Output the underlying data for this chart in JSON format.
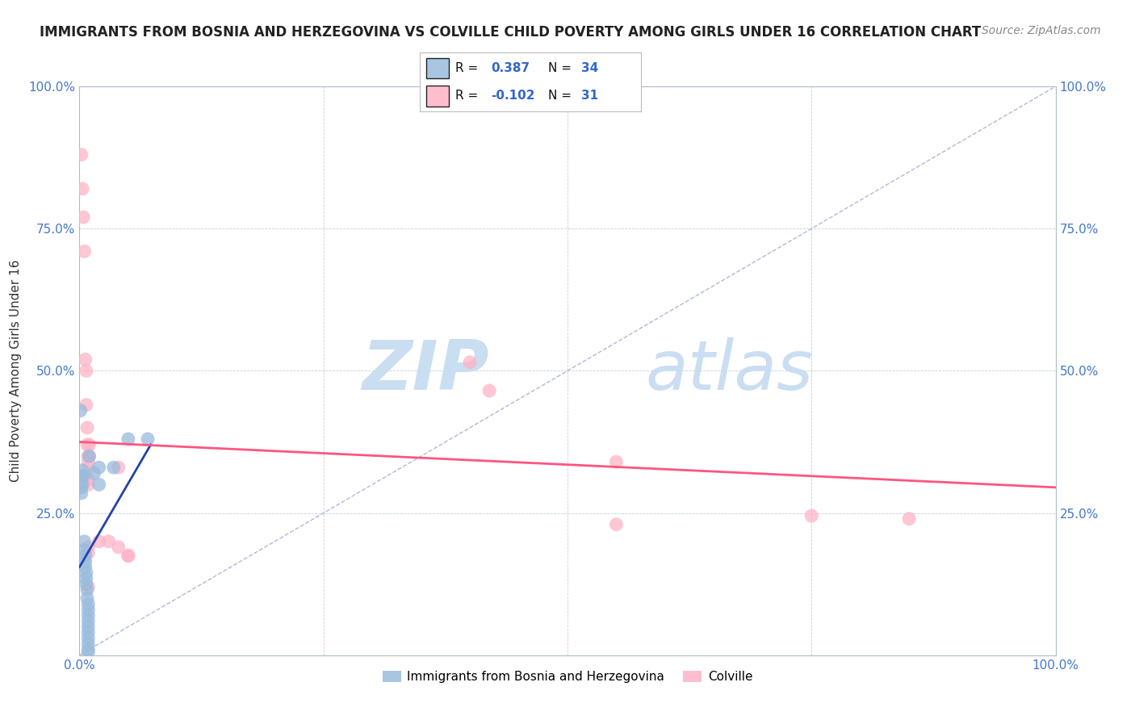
{
  "title": "IMMIGRANTS FROM BOSNIA AND HERZEGOVINA VS COLVILLE CHILD POVERTY AMONG GIRLS UNDER 16 CORRELATION CHART",
  "source": "Source: ZipAtlas.com",
  "ylabel": "Child Poverty Among Girls Under 16",
  "xlim": [
    0,
    1
  ],
  "ylim": [
    0,
    1
  ],
  "xticks": [
    0,
    0.25,
    0.5,
    0.75,
    1.0
  ],
  "yticks": [
    0,
    0.25,
    0.5,
    0.75,
    1.0
  ],
  "watermark_zip": "ZIP",
  "watermark_atlas": "atlas",
  "blue_color": "#99BBDD",
  "pink_color": "#FFB3C6",
  "blue_line_color": "#2244AA",
  "pink_line_color": "#FF5580",
  "blue_scatter": [
    [
      0.001,
      0.43
    ],
    [
      0.002,
      0.315
    ],
    [
      0.002,
      0.295
    ],
    [
      0.002,
      0.285
    ],
    [
      0.003,
      0.325
    ],
    [
      0.003,
      0.3
    ],
    [
      0.004,
      0.315
    ],
    [
      0.005,
      0.2
    ],
    [
      0.005,
      0.185
    ],
    [
      0.006,
      0.175
    ],
    [
      0.006,
      0.165
    ],
    [
      0.006,
      0.155
    ],
    [
      0.007,
      0.145
    ],
    [
      0.007,
      0.135
    ],
    [
      0.007,
      0.125
    ],
    [
      0.008,
      0.115
    ],
    [
      0.008,
      0.1
    ],
    [
      0.009,
      0.09
    ],
    [
      0.009,
      0.08
    ],
    [
      0.009,
      0.07
    ],
    [
      0.009,
      0.06
    ],
    [
      0.009,
      0.05
    ],
    [
      0.009,
      0.04
    ],
    [
      0.009,
      0.03
    ],
    [
      0.009,
      0.02
    ],
    [
      0.009,
      0.01
    ],
    [
      0.009,
      0.005
    ],
    [
      0.01,
      0.35
    ],
    [
      0.015,
      0.32
    ],
    [
      0.02,
      0.33
    ],
    [
      0.02,
      0.3
    ],
    [
      0.035,
      0.33
    ],
    [
      0.05,
      0.38
    ],
    [
      0.07,
      0.38
    ]
  ],
  "pink_scatter": [
    [
      0.002,
      0.88
    ],
    [
      0.003,
      0.82
    ],
    [
      0.004,
      0.77
    ],
    [
      0.005,
      0.71
    ],
    [
      0.006,
      0.52
    ],
    [
      0.007,
      0.5
    ],
    [
      0.007,
      0.44
    ],
    [
      0.008,
      0.4
    ],
    [
      0.008,
      0.37
    ],
    [
      0.009,
      0.35
    ],
    [
      0.009,
      0.34
    ],
    [
      0.009,
      0.33
    ],
    [
      0.009,
      0.31
    ],
    [
      0.009,
      0.3
    ],
    [
      0.009,
      0.19
    ],
    [
      0.009,
      0.18
    ],
    [
      0.009,
      0.12
    ],
    [
      0.01,
      0.37
    ],
    [
      0.01,
      0.35
    ],
    [
      0.02,
      0.2
    ],
    [
      0.03,
      0.2
    ],
    [
      0.04,
      0.19
    ],
    [
      0.04,
      0.33
    ],
    [
      0.05,
      0.175
    ],
    [
      0.05,
      0.175
    ],
    [
      0.4,
      0.515
    ],
    [
      0.42,
      0.465
    ],
    [
      0.55,
      0.34
    ],
    [
      0.55,
      0.23
    ],
    [
      0.75,
      0.245
    ],
    [
      0.85,
      0.24
    ]
  ],
  "blue_regression": [
    0.0,
    0.155,
    0.073,
    0.37
  ],
  "pink_regression": [
    0.0,
    0.375,
    1.0,
    0.295
  ],
  "figsize": [
    14.06,
    8.92
  ],
  "dpi": 100,
  "background_color": "#FFFFFF",
  "grid_color": "#CCCCCC",
  "title_fontsize": 12,
  "source_fontsize": 10,
  "axis_label_fontsize": 11,
  "tick_fontsize": 11,
  "legend_fontsize": 11
}
